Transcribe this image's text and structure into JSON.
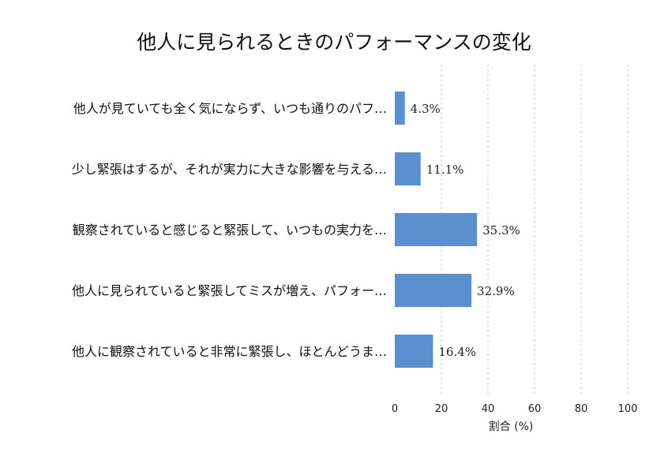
{
  "chart_data": {
    "type": "bar",
    "orientation": "horizontal",
    "title": "他人に見られるときのパフォーマンスの変化",
    "xlabel": "割合 (%)",
    "ylabel": "",
    "xlim": [
      0,
      100
    ],
    "xticks": [
      "0",
      "20",
      "40",
      "60",
      "80",
      "100"
    ],
    "grid": "vertical-dashed",
    "bar_color": "#5b8fd0",
    "categories": [
      "他人が見ていても全く気にならず、いつも通りのパフ…",
      "少し緊張はするが、それが実力に大きな影響を与える…",
      "観察されていると感じると緊張して、いつもの実力を…",
      "他人に見られていると緊張してミスが増え、パフォー…",
      "他人に観察されていると非常に緊張し、ほとんどうま…"
    ],
    "values": [
      4.3,
      11.1,
      35.3,
      32.9,
      16.4
    ],
    "value_labels": [
      "4.3%",
      "11.1%",
      "35.3%",
      "32.9%",
      "16.4%"
    ]
  }
}
